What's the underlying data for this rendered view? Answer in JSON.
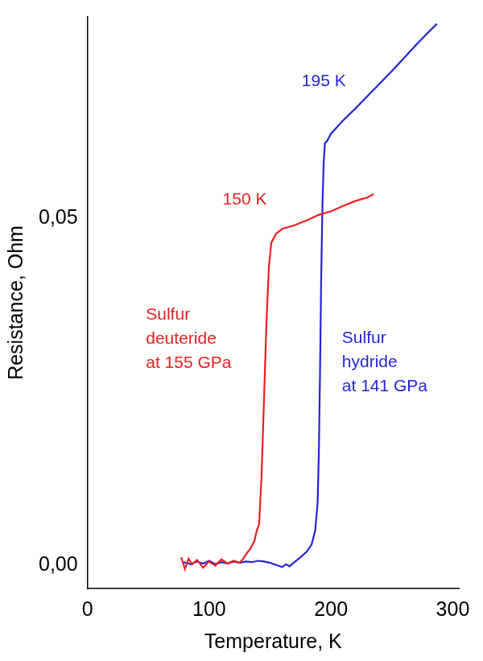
{
  "chart_data": {
    "type": "line",
    "x_label": "Temperature, K",
    "y_label": "Resistance, Ohm",
    "xlim": [
      0,
      305
    ],
    "xticks": [
      0,
      100,
      200,
      300
    ],
    "ylim": [
      -0.0033,
      0.079
    ],
    "yticks": [
      {
        "value": 0,
        "label": "0,00"
      },
      {
        "value": 0.05,
        "label": "0,05"
      }
    ],
    "grid": false,
    "series": [
      {
        "color": "#e82020",
        "x": [
          77,
          80,
          83,
          86,
          90,
          95,
          100,
          105,
          110,
          115,
          120,
          125,
          128,
          131,
          134,
          137,
          139,
          141,
          143,
          145,
          147,
          149,
          151,
          155,
          160,
          170,
          180,
          190,
          200,
          210,
          220,
          230,
          235
        ],
        "values": [
          0.0012,
          -0.0005,
          0.001,
          0.0002,
          0.0008,
          -0.0003,
          0.0006,
          0.0,
          0.0009,
          0.0003,
          0.0007,
          0.0004,
          0.001,
          0.0018,
          0.0025,
          0.0035,
          0.005,
          0.006,
          0.013,
          0.024,
          0.035,
          0.043,
          0.0465,
          0.0478,
          0.0485,
          0.049,
          0.0497,
          0.0505,
          0.051,
          0.0518,
          0.0525,
          0.053,
          0.0535
        ]
      },
      {
        "color": "#2424d8",
        "x": [
          79,
          85,
          90,
          95,
          100,
          105,
          110,
          115,
          120,
          125,
          130,
          135,
          140,
          145,
          150,
          155,
          160,
          163,
          166,
          170,
          175,
          180,
          184,
          187,
          189,
          190,
          191,
          192,
          193,
          194,
          195,
          197,
          200,
          210,
          220,
          230,
          240,
          250,
          260,
          270,
          280,
          287
        ],
        "values": [
          0.0005,
          0.0002,
          0.0006,
          0.0003,
          0.0007,
          0.0002,
          0.0005,
          0.0003,
          0.0006,
          0.0004,
          0.0006,
          0.0005,
          0.0007,
          0.0006,
          0.0004,
          0.0001,
          -0.0002,
          0.0002,
          -0.0001,
          0.0005,
          0.0012,
          0.002,
          0.003,
          0.005,
          0.009,
          0.016,
          0.028,
          0.042,
          0.052,
          0.058,
          0.0608,
          0.0612,
          0.0622,
          0.0641,
          0.0658,
          0.0676,
          0.0694,
          0.0712,
          0.0731,
          0.075,
          0.0768,
          0.078
        ]
      }
    ],
    "annotations": [
      {
        "text": [
          "195 K"
        ],
        "x": 176,
        "y": 0.0697,
        "color": "#2424d8"
      },
      {
        "text": [
          "150 K"
        ],
        "x": 111,
        "y": 0.0527,
        "color": "#e82020"
      },
      {
        "text": [
          "Sulfur",
          "deuteride",
          "at 155 GPa"
        ],
        "x": 48,
        "y": 0.0326,
        "color": "#e82020"
      },
      {
        "text": [
          "Sulfur",
          "hydride",
          "at 141 GPa"
        ],
        "x": 209,
        "y": 0.0293,
        "color": "#2424d8"
      }
    ]
  }
}
